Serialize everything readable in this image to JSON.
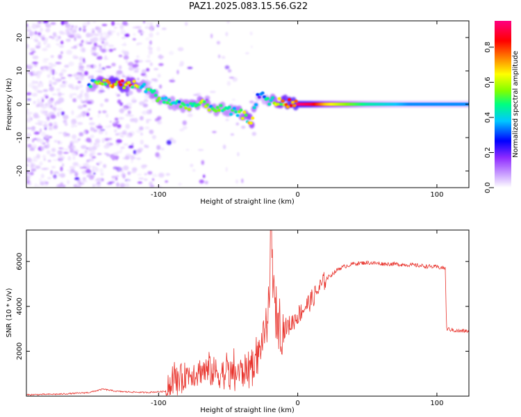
{
  "title": "PAZ1.2025.083.15.56.G22",
  "chart_data": [
    {
      "type": "heatmap",
      "xlabel": "Height of straight line (km)",
      "ylabel": "Frequency (Hz)",
      "xlim": [
        -195,
        123
      ],
      "ylim": [
        -25,
        25
      ],
      "x_ticks": [
        -100,
        0,
        100
      ],
      "y_ticks": [
        -20,
        -10,
        0,
        10,
        20
      ],
      "colorbar": {
        "label": "Normalized spectral amplitude",
        "range": [
          0,
          0.95
        ],
        "ticks": [
          "0.0",
          "0.2",
          "0.4",
          "0.6",
          "0.8"
        ],
        "colors": [
          "#ffffff",
          "#d7b8ff",
          "#8f2bff",
          "#0000ff",
          "#00c8ff",
          "#00ff80",
          "#80ff00",
          "#ffff00",
          "#ff8000",
          "#ff0000",
          "#ff0080"
        ]
      },
      "ridge": {
        "x": [
          -150,
          -140,
          -130,
          -120,
          -110,
          -100,
          -90,
          -80,
          -70,
          -60,
          -50,
          -40,
          -33,
          -28,
          -20,
          -10,
          0,
          10,
          20,
          50,
          80,
          123
        ],
        "y": [
          6,
          6.5,
          6,
          6,
          5,
          2,
          0.5,
          -0.5,
          0,
          -1,
          -2,
          -3,
          -5,
          3,
          1,
          0.5,
          0,
          0,
          0,
          0,
          0,
          0
        ],
        "amplitude": [
          0.4,
          0.75,
          0.9,
          0.8,
          0.5,
          0.6,
          0.5,
          0.55,
          0.6,
          0.55,
          0.5,
          0.6,
          0.75,
          0.3,
          0.55,
          0.85,
          0.95,
          0.9,
          0.7,
          0.45,
          0.35,
          0.35
        ]
      }
    },
    {
      "type": "line",
      "xlabel": "Height of straight line (km)",
      "ylabel": "SNR (10 * v/v)",
      "xlim": [
        -195,
        123
      ],
      "ylim": [
        0,
        7400
      ],
      "x_ticks": [
        -100,
        0,
        100
      ],
      "y_ticks": [
        2000,
        4000,
        6000
      ],
      "series": [
        {
          "color": "#e8312a",
          "x": [
            -195,
            -170,
            -150,
            -140,
            -130,
            -110,
            -95,
            -90,
            -80,
            -70,
            -60,
            -50,
            -40,
            -30,
            -25,
            -20,
            -18,
            -15,
            -10,
            -5,
            0,
            10,
            20,
            30,
            40,
            50,
            60,
            70,
            80,
            90,
            100,
            106,
            107,
            115,
            123
          ],
          "y": [
            50,
            80,
            150,
            300,
            200,
            150,
            200,
            600,
            900,
            1100,
            1000,
            900,
            1000,
            1500,
            2500,
            4000,
            4500,
            3500,
            3000,
            3200,
            3600,
            4300,
            5200,
            5700,
            5900,
            5950,
            5900,
            5880,
            5850,
            5800,
            5750,
            5700,
            3000,
            2900,
            2900
          ]
        }
      ]
    }
  ]
}
